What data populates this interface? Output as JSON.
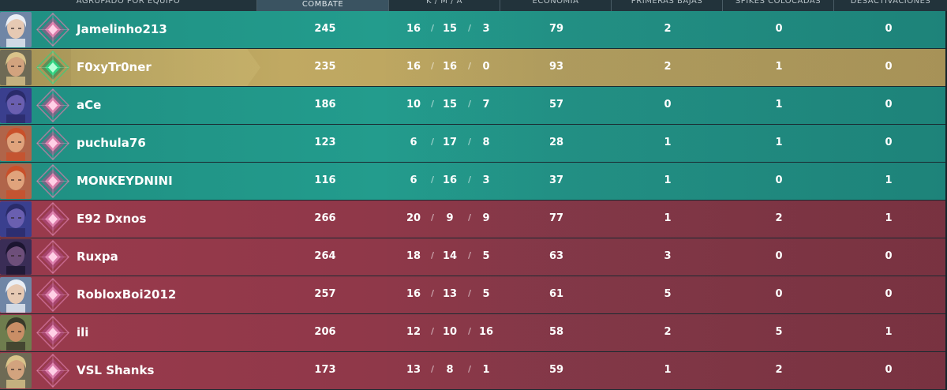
{
  "header": {
    "columns": [
      {
        "label": "AGRUPADO POR EQUIPO",
        "active": false
      },
      {
        "label": "COMBATE",
        "active": true
      },
      {
        "label": "K / M / A",
        "active": false
      },
      {
        "label": "ECONOMÍA",
        "active": false
      },
      {
        "label": "PRIMERAS BAJAS",
        "active": false
      },
      {
        "label": "SPIKES COLOCADAS",
        "active": false
      },
      {
        "label": "DESACTIVACIONES",
        "active": false
      }
    ]
  },
  "colors": {
    "team_a": "#1f8f82",
    "team_b": "#9a3a4c",
    "self_row": "#b9a25e"
  },
  "players": [
    {
      "name": "Jamelinho213",
      "team": "a",
      "self": false,
      "agent_icon": "agent-portrait-white-hair",
      "rank_icon": "rank-icon-pink-diamond",
      "combat": "245",
      "k": "16",
      "d": "15",
      "a": "3",
      "econ": "79",
      "first_bloods": "2",
      "plants": "0",
      "defuses": "0"
    },
    {
      "name": "F0xyTr0ner",
      "team": "a",
      "self": true,
      "agent_icon": "agent-portrait-blond",
      "rank_icon": "rank-icon-green-diamond",
      "combat": "235",
      "k": "16",
      "d": "16",
      "a": "0",
      "econ": "93",
      "first_bloods": "2",
      "plants": "1",
      "defuses": "0"
    },
    {
      "name": "aCe",
      "team": "a",
      "self": false,
      "agent_icon": "agent-portrait-hooded",
      "rank_icon": "rank-icon-pink-diamond",
      "combat": "186",
      "k": "10",
      "d": "15",
      "a": "7",
      "econ": "57",
      "first_bloods": "0",
      "plants": "1",
      "defuses": "0"
    },
    {
      "name": "puchula76",
      "team": "a",
      "self": false,
      "agent_icon": "agent-portrait-redhead",
      "rank_icon": "rank-icon-pink-diamond",
      "combat": "123",
      "k": "6",
      "d": "17",
      "a": "8",
      "econ": "28",
      "first_bloods": "1",
      "plants": "1",
      "defuses": "0"
    },
    {
      "name": "MONKEYDNINI",
      "team": "a",
      "self": false,
      "agent_icon": "agent-portrait-redhead",
      "rank_icon": "rank-icon-pink-diamond",
      "combat": "116",
      "k": "6",
      "d": "16",
      "a": "3",
      "econ": "37",
      "first_bloods": "1",
      "plants": "0",
      "defuses": "1"
    },
    {
      "name": "E92 Dxnos",
      "team": "b",
      "self": false,
      "agent_icon": "agent-portrait-hooded",
      "rank_icon": "rank-icon-pink-diamond",
      "combat": "266",
      "k": "20",
      "d": "9",
      "a": "9",
      "econ": "77",
      "first_bloods": "1",
      "plants": "2",
      "defuses": "1"
    },
    {
      "name": "Ruxpa",
      "team": "b",
      "self": false,
      "agent_icon": "agent-portrait-dark",
      "rank_icon": "rank-icon-pink-diamond",
      "combat": "264",
      "k": "18",
      "d": "14",
      "a": "5",
      "econ": "63",
      "first_bloods": "3",
      "plants": "0",
      "defuses": "0"
    },
    {
      "name": "RobloxBoi2012",
      "team": "b",
      "self": false,
      "agent_icon": "agent-portrait-white-hair",
      "rank_icon": "rank-icon-pink-diamond",
      "combat": "257",
      "k": "16",
      "d": "13",
      "a": "5",
      "econ": "61",
      "first_bloods": "5",
      "plants": "0",
      "defuses": "0"
    },
    {
      "name": "ili",
      "team": "b",
      "self": false,
      "agent_icon": "agent-portrait-bandana",
      "rank_icon": "rank-icon-pink-diamond",
      "combat": "206",
      "k": "12",
      "d": "10",
      "a": "16",
      "econ": "58",
      "first_bloods": "2",
      "plants": "5",
      "defuses": "1"
    },
    {
      "name": "VSL Shanks",
      "team": "b",
      "self": false,
      "agent_icon": "agent-portrait-blond",
      "rank_icon": "rank-icon-pink-diamond",
      "combat": "173",
      "k": "13",
      "d": "8",
      "a": "1",
      "econ": "59",
      "first_bloods": "1",
      "plants": "2",
      "defuses": "0"
    }
  ]
}
